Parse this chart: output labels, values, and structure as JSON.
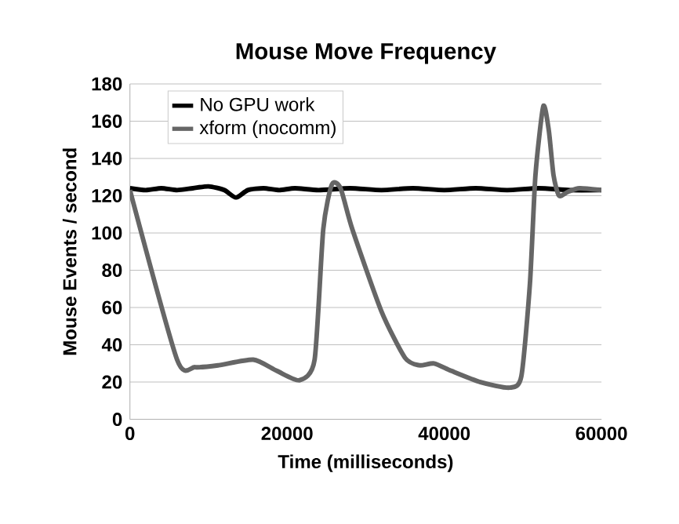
{
  "chart_data": {
    "type": "line",
    "title": "Mouse Move Frequency",
    "xlabel": "Time (milliseconds)",
    "ylabel": "Mouse Events / second",
    "xlim": [
      0,
      60000
    ],
    "xticks": [
      0,
      20000,
      40000,
      60000
    ],
    "ylim": [
      0,
      180
    ],
    "yticks": [
      0,
      20,
      40,
      60,
      80,
      100,
      120,
      140,
      160,
      180
    ],
    "grid": "y",
    "legend": "top left",
    "series": [
      {
        "name": "No GPU work",
        "color": "#000000",
        "x": [
          0,
          2000,
          4000,
          6000,
          8000,
          10000,
          12000,
          13500,
          15000,
          17000,
          19000,
          21000,
          24000,
          28000,
          32000,
          36000,
          40000,
          44000,
          48000,
          52000,
          56000,
          60000
        ],
        "values": [
          124,
          123,
          124,
          123,
          124,
          125,
          123,
          119,
          123,
          124,
          123,
          124,
          123,
          124,
          123,
          124,
          123,
          124,
          123,
          124,
          123,
          123
        ]
      },
      {
        "name": "xform (nocomm)",
        "color": "#666666",
        "x": [
          0,
          6000,
          8300,
          11300,
          15700,
          18700,
          21600,
          23500,
          24600,
          25700,
          26800,
          28300,
          32000,
          35000,
          36800,
          38700,
          40900,
          44600,
          48300,
          49800,
          50900,
          51600,
          52600,
          53300,
          53900,
          54600,
          55700,
          57200,
          60000
        ],
        "values": [
          123,
          32,
          28,
          29,
          32,
          26,
          21,
          32,
          102,
          126,
          124,
          102,
          58,
          33,
          29,
          30,
          26,
          20,
          17,
          23,
          73,
          131,
          168,
          155,
          131,
          120,
          122,
          124,
          123
        ]
      }
    ]
  }
}
